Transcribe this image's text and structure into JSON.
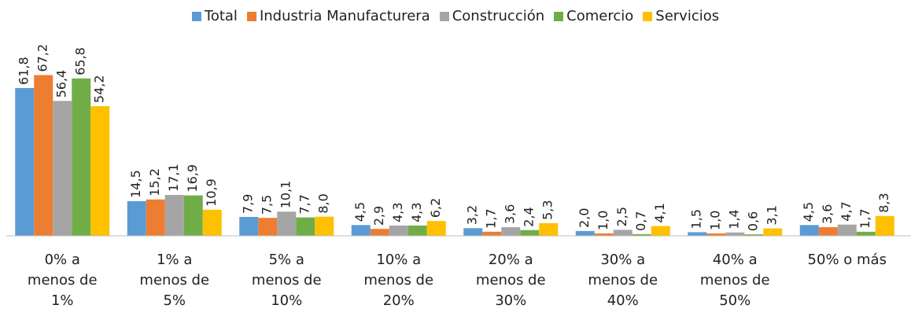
{
  "chart_data": {
    "type": "bar",
    "categories": [
      "0% a\nmenos de\n1%",
      "1% a\nmenos de\n5%",
      "5% a\nmenos de\n10%",
      "10% a\nmenos de\n20%",
      "20% a\nmenos de\n30%",
      "30% a\nmenos de\n40%",
      "40% a\nmenos de\n50%",
      "50% o más"
    ],
    "ylim": [
      0,
      70
    ],
    "series": [
      {
        "name": "Total",
        "color": "#5b9bd5",
        "values": [
          61.8,
          14.5,
          7.9,
          4.5,
          3.2,
          2.0,
          1.5,
          4.5
        ],
        "value_labels": [
          "61,8",
          "14,5",
          "7,9",
          "4,5",
          "3,2",
          "2,0",
          "1,5",
          "4,5"
        ]
      },
      {
        "name": "Industria Manufacturera",
        "color": "#ed7d31",
        "values": [
          67.2,
          15.2,
          7.5,
          2.9,
          1.7,
          1.0,
          1.0,
          3.6
        ],
        "value_labels": [
          "67,2",
          "15,2",
          "7,5",
          "2,9",
          "1,7",
          "1,0",
          "1,0",
          "3,6"
        ]
      },
      {
        "name": "Construcción",
        "color": "#a5a5a5",
        "values": [
          56.4,
          17.1,
          10.1,
          4.3,
          3.6,
          2.5,
          1.4,
          4.7
        ],
        "value_labels": [
          "56,4",
          "17,1",
          "10,1",
          "4,3",
          "3,6",
          "2,5",
          "1,4",
          "4,7"
        ]
      },
      {
        "name": "Comercio",
        "color": "#70ad47",
        "values": [
          65.8,
          16.9,
          7.7,
          4.3,
          2.4,
          0.7,
          0.6,
          1.7
        ],
        "value_labels": [
          "65,8",
          "16,9",
          "7,7",
          "4,3",
          "2,4",
          "0,7",
          "0,6",
          "1,7"
        ]
      },
      {
        "name": "Servicios",
        "color": "#ffc000",
        "values": [
          54.2,
          10.9,
          8.0,
          6.2,
          5.3,
          4.1,
          3.1,
          8.3
        ],
        "value_labels": [
          "54,2",
          "10,9",
          "8,0",
          "6,2",
          "5,3",
          "4,1",
          "3,1",
          "8,3"
        ]
      }
    ]
  }
}
